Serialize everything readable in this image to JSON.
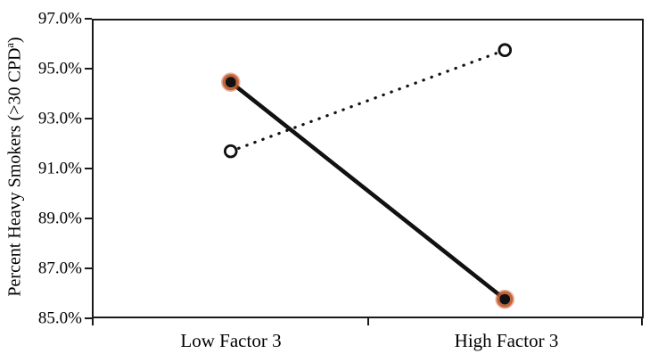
{
  "chart_data": {
    "type": "line",
    "categories": [
      "Low Factor 3",
      "High Factor 3"
    ],
    "series": [
      {
        "name": "solid_line_filled_markers",
        "style": "solid",
        "marker": "filled-circle-orange-ring",
        "values": [
          94.5,
          85.7
        ]
      },
      {
        "name": "dotted_line_open_markers",
        "style": "dotted",
        "marker": "open-circle",
        "values": [
          91.7,
          95.8
        ]
      }
    ],
    "title": "",
    "xlabel": "",
    "ylabel": "Percent Heavy Smokers (>30 CPDa)",
    "ylabel_parts": {
      "prefix": "Percent Heavy Smokers (>30 CPD",
      "superscript": "a",
      "suffix": ")"
    },
    "yticks": [
      "97.0%",
      "95.0%",
      "93.0%",
      "91.0%",
      "89.0%",
      "87.0%",
      "85.0%"
    ],
    "ytick_values": [
      97,
      95,
      93,
      91,
      89,
      87,
      85
    ],
    "ylim": [
      85,
      97
    ],
    "grid": false,
    "legend": "none",
    "colors": {
      "line": "#111111",
      "marker_ring": "#c4582b",
      "marker_fill": "#111111",
      "open_marker_fill": "#ffffff",
      "axis": "#1a1a1a",
      "background": "#ffffff"
    }
  }
}
